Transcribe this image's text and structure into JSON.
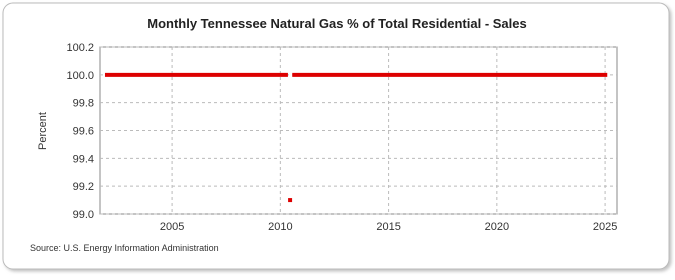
{
  "chart_data": {
    "type": "line",
    "title": "Monthly Tennessee Natural Gas % of Total Residential - Sales",
    "y_label": "Percent",
    "source": "Source: U.S. Energy Information Administration",
    "x": [
      2001.9,
      2010.35,
      2010.4,
      2010.45,
      2010.5,
      2010.55,
      2025.1
    ],
    "series": [
      {
        "name": "Percent",
        "color": "#dd0000",
        "values": [
          100,
          100,
          null,
          99.1,
          null,
          100,
          100
        ]
      }
    ],
    "xlim": [
      2001.67,
      2025.55
    ],
    "xticks": [
      2005,
      2010,
      2015,
      2020,
      2025
    ],
    "ylim": [
      99,
      100.2
    ],
    "yticks": [
      {
        "value": 99,
        "label": "99.0"
      },
      99.2,
      99.4,
      99.6,
      99.8,
      {
        "value": 100,
        "label": "100.0"
      },
      100.2
    ],
    "grid": true
  }
}
